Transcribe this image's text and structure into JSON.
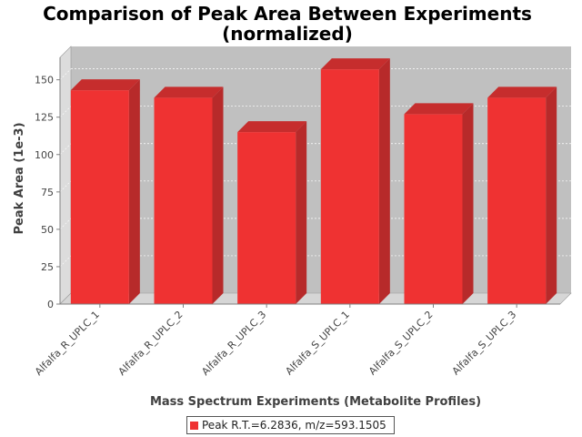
{
  "chart_data": {
    "type": "bar",
    "title_line1": "Comparison of Peak Area Between Experiments",
    "title_line2": "(normalized)",
    "xlabel": "Mass Spectrum Experiments (Metabolite Profiles)",
    "ylabel": "Peak Area (1e-3)",
    "categories": [
      "Alfalfa_R_UPLC_1",
      "Alfalfa_R_UPLC_2",
      "Alfalfa_R_UPLC_3",
      "Alfalfa_S_UPLC_1",
      "Alfalfa_S_UPLC_2",
      "Alfalfa_S_UPLC_3"
    ],
    "series": [
      {
        "name": "Peak R.T.=6.2836, m/z=593.1505",
        "values": [
          143,
          138,
          115,
          157,
          127,
          138
        ]
      }
    ],
    "ylim": [
      0,
      165
    ],
    "yticks": [
      0,
      25,
      50,
      75,
      100,
      125,
      150
    ],
    "grid": true,
    "legend": "bottom-center",
    "colors": {
      "bar_front": "#ef3232",
      "bar_side": "#b72a2a",
      "bar_top": "#c62d2d",
      "plot_bg": "#c0c0c0"
    }
  }
}
